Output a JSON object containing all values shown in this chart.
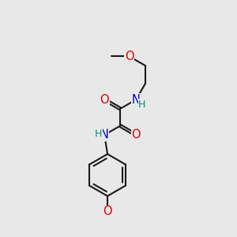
{
  "background_color": "#e8e8e8",
  "bond_color": "#1a1a1a",
  "bond_width": 1.5,
  "figsize": [
    3.0,
    3.0
  ],
  "dpi": 100,
  "colors": {
    "O": "#dd0000",
    "N": "#0000cc",
    "H": "#008888",
    "C": "#1a1a1a"
  }
}
